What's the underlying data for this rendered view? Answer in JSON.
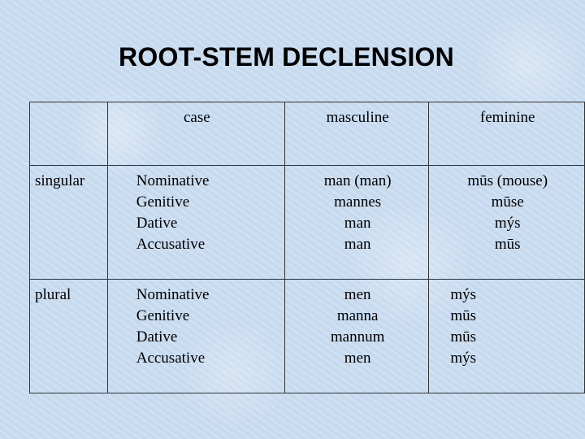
{
  "title": "ROOT-STEM DECLENSION",
  "table": {
    "headers": [
      "",
      "case",
      "masculine",
      "feminine"
    ],
    "rows": [
      {
        "number": "singular",
        "cases": [
          "Nominative",
          "Genitive",
          "Dative",
          "Accusative"
        ],
        "masculine": [
          "man (man)",
          "mannes",
          "man",
          "man"
        ],
        "feminine": [
          "mūs (mouse)",
          "mūse",
          "mýs",
          "mūs"
        ]
      },
      {
        "number": "plural",
        "cases": [
          "Nominative",
          "Genitive",
          "Dative",
          "Accusative"
        ],
        "masculine": [
          "men",
          "manna",
          "mannum",
          "men"
        ],
        "feminine": [
          "mýs",
          "mūs",
          "mūs",
          "mýs"
        ]
      }
    ]
  }
}
